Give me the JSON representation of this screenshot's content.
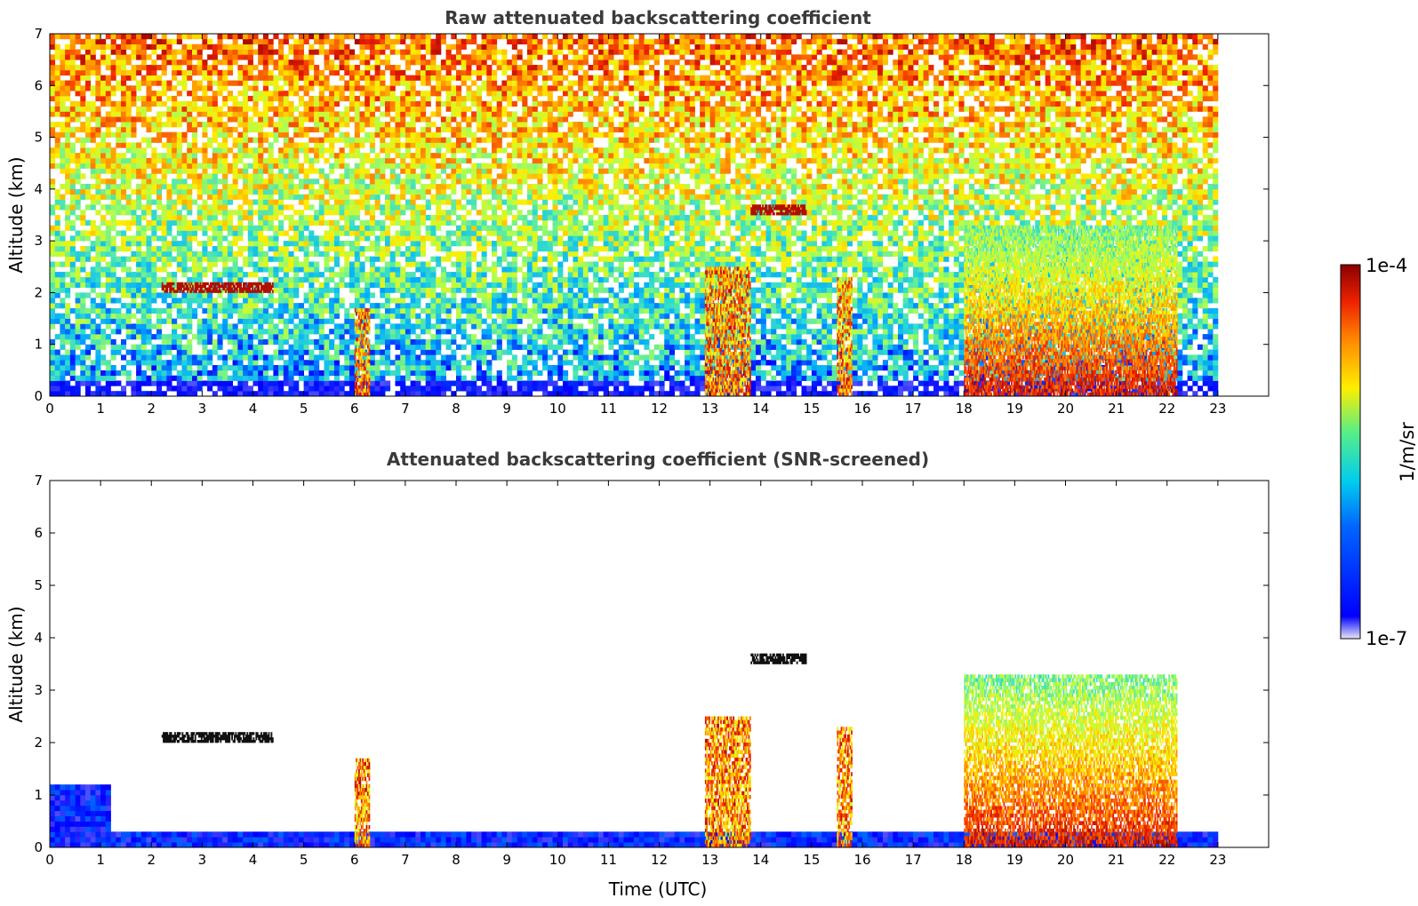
{
  "chart_data": [
    {
      "type": "heatmap",
      "title": "Raw attenuated backscattering coefficient",
      "xlabel": "",
      "ylabel": "Altitude (km)",
      "xlim": [
        0,
        24
      ],
      "ylim": [
        0,
        7
      ],
      "xticks": [
        "0",
        "1",
        "2",
        "3",
        "4",
        "5",
        "6",
        "7",
        "8",
        "9",
        "10",
        "11",
        "12",
        "13",
        "14",
        "15",
        "16",
        "17",
        "18",
        "19",
        "20",
        "21",
        "22",
        "23"
      ],
      "yticks": [
        "0",
        "1",
        "2",
        "3",
        "4",
        "5",
        "6",
        "7"
      ],
      "data_extent_hours": [
        0,
        23
      ],
      "features": [
        {
          "name": "dense cloud column",
          "time": [
            6.0,
            6.3
          ],
          "alt": [
            0,
            1.7
          ]
        },
        {
          "name": "dense cloud column",
          "time": [
            12.9,
            13.8
          ],
          "alt": [
            0,
            2.5
          ]
        },
        {
          "name": "dense cloud column",
          "time": [
            15.5,
            15.8
          ],
          "alt": [
            0,
            2.3
          ]
        },
        {
          "name": "precipitation band",
          "time": [
            18.0,
            22.2
          ],
          "alt": [
            0,
            3.3
          ]
        },
        {
          "name": "cloud layer",
          "time": [
            2.2,
            4.4
          ],
          "alt": [
            2.0,
            2.2
          ]
        },
        {
          "name": "cloud layer",
          "time": [
            13.8,
            14.9
          ],
          "alt": [
            3.5,
            3.7
          ]
        }
      ]
    },
    {
      "type": "heatmap",
      "title": "Attenuated backscattering coefficient (SNR-screened)",
      "xlabel": "Time (UTC)",
      "ylabel": "Altitude (km)",
      "xlim": [
        0,
        24
      ],
      "ylim": [
        0,
        7
      ],
      "xticks": [
        "0",
        "1",
        "2",
        "3",
        "4",
        "5",
        "6",
        "7",
        "8",
        "9",
        "10",
        "11",
        "12",
        "13",
        "14",
        "15",
        "16",
        "17",
        "18",
        "19",
        "20",
        "21",
        "22",
        "23"
      ],
      "yticks": [
        "0",
        "1",
        "2",
        "3",
        "4",
        "5",
        "6",
        "7"
      ],
      "data_extent_hours": [
        0,
        23
      ],
      "screened": true
    }
  ],
  "colorbar": {
    "label": "1/m/sr",
    "max_label": "1e-4",
    "min_label": "1e-7",
    "scale": "log",
    "range": [
      1e-07,
      0.0001
    ],
    "colors": [
      "#e6e6f5",
      "#0000ff",
      "#00aaff",
      "#33ddcc",
      "#aaff55",
      "#ffee00",
      "#ff8800",
      "#ee2200",
      "#8b0000"
    ]
  }
}
